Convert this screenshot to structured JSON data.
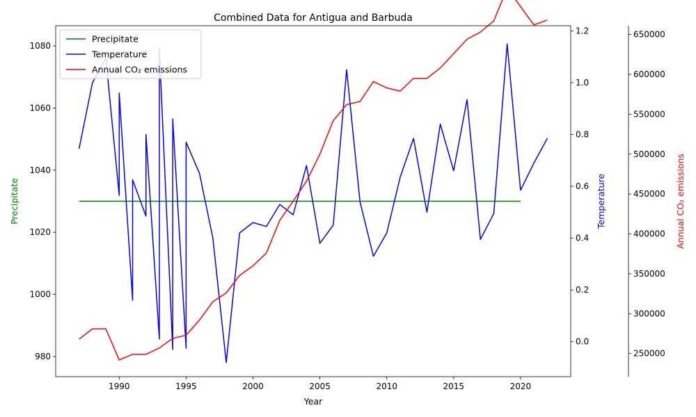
{
  "chart_data": {
    "type": "line",
    "title": "Combined Data for Antigua and Barbuda",
    "xlabel": "Year",
    "xlim": [
      1985.25,
      2023.75
    ],
    "x_ticks": [
      1990,
      1995,
      2000,
      2005,
      2010,
      2015,
      2020
    ],
    "grid": false,
    "legend_position": "top-left",
    "axes": [
      {
        "id": "precip",
        "label": "Precipitate",
        "color": "#008000",
        "side": "left",
        "ylim": [
          973.5,
          1086.5
        ],
        "ticks": [
          980,
          1000,
          1020,
          1040,
          1060,
          1080
        ]
      },
      {
        "id": "temp",
        "label": "Temperature",
        "color": "#0000ff",
        "side": "right",
        "ylim": [
          -0.135,
          1.22
        ],
        "ticks": [
          0.0,
          0.2,
          0.4,
          0.6,
          0.8,
          1.0,
          1.2
        ]
      },
      {
        "id": "co2",
        "label": "Annual CO₂ emissions",
        "color": "#ff0000",
        "side": "right-outer",
        "ylim": [
          221000,
          661000
        ],
        "ticks": [
          250000,
          300000,
          350000,
          400000,
          450000,
          500000,
          550000,
          600000,
          650000
        ]
      }
    ],
    "series": [
      {
        "name": "Precipitate",
        "axis": "precip",
        "color": "#008000",
        "x": [
          1987,
          1988,
          1989,
          1990,
          1991,
          1992,
          1993,
          1994,
          1995,
          1996,
          1997,
          1998,
          1999,
          2000,
          2001,
          2002,
          2003,
          2004,
          2005,
          2006,
          2007,
          2008,
          2009,
          2010,
          2011,
          2012,
          2013,
          2014,
          2015,
          2016,
          2017,
          2018,
          2019,
          2020
        ],
        "y": [
          1030,
          1030,
          1030,
          1030,
          1030,
          1030,
          1030,
          1030,
          1030,
          1030,
          1030,
          1030,
          1030,
          1030,
          1030,
          1030,
          1030,
          1030,
          1030,
          1030,
          1030,
          1030,
          1030,
          1030,
          1030,
          1030,
          1030,
          1030,
          1030,
          1030,
          1030,
          1030,
          1030,
          1030
        ]
      },
      {
        "name": "Temperature",
        "axis": "temp",
        "color": "#0000ff",
        "x": [
          1987,
          1988,
          1989,
          1990,
          1990,
          1991,
          1991,
          1992,
          1992,
          1993,
          1993,
          1994,
          1994,
          1995,
          1995,
          1996,
          1997,
          1998,
          1999,
          2000,
          2001,
          2002,
          2003,
          2004,
          2005,
          2006,
          2007,
          2008,
          2009,
          2010,
          2011,
          2012,
          2013,
          2014,
          2015,
          2016,
          2017,
          2018,
          2019,
          2020,
          2021,
          2022
        ],
        "y": [
          0.745,
          1.0,
          1.095,
          0.565,
          0.96,
          0.16,
          0.625,
          0.485,
          0.8,
          0.01,
          1.13,
          -0.03,
          0.86,
          -0.025,
          0.77,
          0.65,
          0.4,
          -0.08,
          0.42,
          0.46,
          0.445,
          0.53,
          0.49,
          0.68,
          0.38,
          0.45,
          1.05,
          0.54,
          0.33,
          0.42,
          0.635,
          0.785,
          0.5,
          0.84,
          0.66,
          0.935,
          0.395,
          0.495,
          1.15,
          0.585,
          0.69,
          0.785
        ]
      },
      {
        "name": "Annual CO₂ emissions",
        "axis": "co2",
        "color": "#ff0000",
        "x": [
          1987,
          1988,
          1989,
          1990,
          1991,
          1992,
          1993,
          1994,
          1995,
          1996,
          1997,
          1998,
          1999,
          2000,
          2001,
          2002,
          2003,
          2004,
          2005,
          2006,
          2007,
          2008,
          2009,
          2010,
          2011,
          2012,
          2013,
          2014,
          2015,
          2016,
          2017,
          2018,
          2019,
          2020,
          2021,
          2022
        ],
        "y": [
          268000,
          281000,
          281000,
          242000,
          249000,
          249000,
          257000,
          269000,
          273000,
          292000,
          315000,
          326000,
          348000,
          360000,
          376000,
          417000,
          441000,
          466000,
          500000,
          542000,
          562000,
          566000,
          591000,
          583000,
          579000,
          595000,
          595000,
          608000,
          626000,
          644000,
          653000,
          667000,
          708000,
          685000,
          662000,
          668000
        ]
      }
    ]
  }
}
